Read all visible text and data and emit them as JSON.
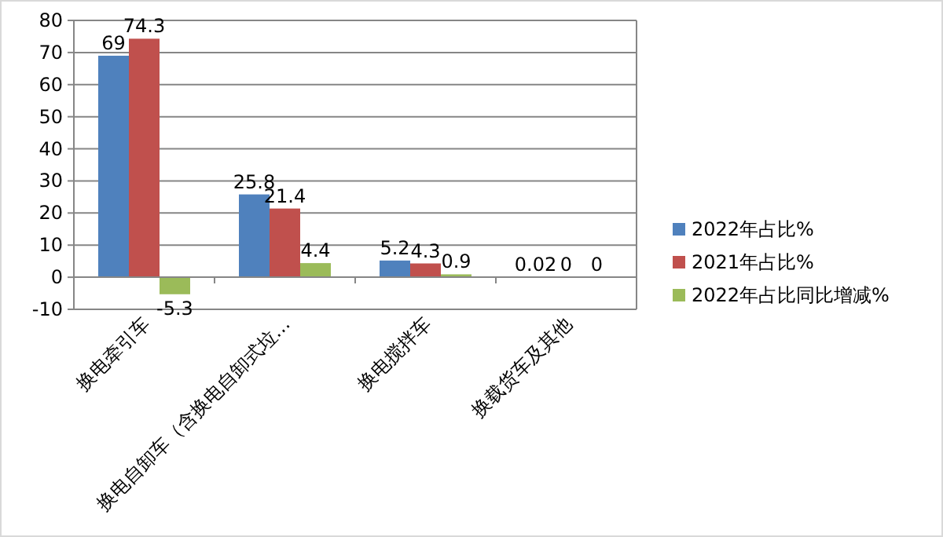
{
  "chart_data": {
    "type": "bar",
    "categories": [
      "换电牵引车",
      "换电自卸车（含换电自卸式垃…",
      "换电搅拌车",
      "换载货车及其他"
    ],
    "series": [
      {
        "name": "2022年占比%",
        "color": "#4f81bd",
        "values": [
          69,
          25.8,
          5.2,
          0.02
        ]
      },
      {
        "name": "2021年占比%",
        "color": "#c0504d",
        "values": [
          74.3,
          21.4,
          4.3,
          0
        ]
      },
      {
        "name": "2022年占比同比增减%",
        "color": "#9bbb59",
        "values": [
          -5.3,
          4.4,
          0.9,
          0
        ]
      }
    ],
    "ylim": [
      -10,
      80
    ],
    "yticks": [
      -10,
      0,
      10,
      20,
      30,
      40,
      50,
      60,
      70,
      80
    ],
    "grid": "y",
    "legend": "right",
    "data_labels": true
  }
}
